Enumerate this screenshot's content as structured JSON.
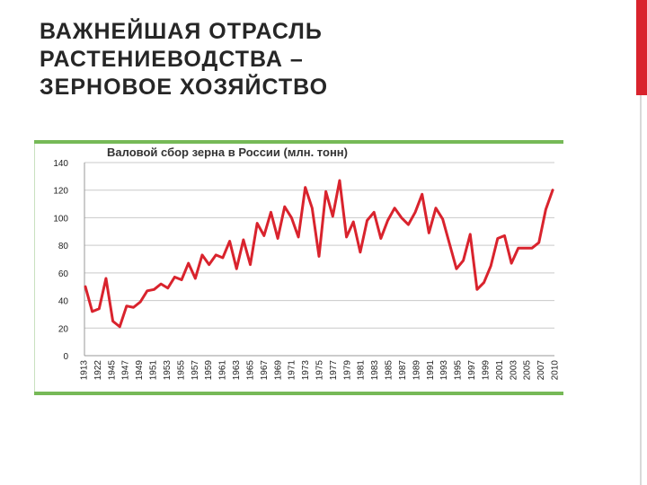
{
  "slide": {
    "title_lines": [
      "ВАЖНЕЙШАЯ ОТРАСЛЬ",
      "РАСТЕНИЕВОДСТВА –",
      "ЗЕРНОВОЕ ХОЗЯЙСТВО"
    ],
    "accent_color": "#d9232d",
    "chart_frame_color": "#76b957"
  },
  "chart_data": {
    "type": "line",
    "title": "Валовой сбор зерна в России (млн. тонн)",
    "xlabel": "",
    "ylabel": "",
    "ylim": [
      0,
      140
    ],
    "yticks": [
      0,
      20,
      40,
      60,
      80,
      100,
      120,
      140
    ],
    "grid": true,
    "legend": "none",
    "line_color": "#d9232d",
    "x_tick_labels": [
      "1913",
      "1922",
      "1945",
      "1947",
      "1949",
      "1951",
      "1953",
      "1955",
      "1957",
      "1959",
      "1961",
      "1963",
      "1965",
      "1967",
      "1969",
      "1971",
      "1973",
      "1975",
      "1977",
      "1979",
      "1981",
      "1983",
      "1985",
      "1987",
      "1989",
      "1991",
      "1993",
      "1995",
      "1997",
      "1999",
      "2001",
      "2003",
      "2005",
      "2007",
      "2010"
    ],
    "series": [
      {
        "values": [
          50,
          32,
          34,
          56,
          25,
          21,
          36,
          35,
          39,
          47,
          48,
          52,
          49,
          57,
          55,
          67,
          56,
          73,
          66,
          73,
          71,
          83,
          63,
          84,
          66,
          96,
          87,
          104,
          85,
          108,
          100,
          86,
          122,
          107,
          72,
          119,
          101,
          127,
          86,
          97,
          75,
          98,
          104,
          85,
          98,
          107,
          100,
          95,
          104,
          117,
          89,
          107,
          99,
          81,
          63,
          69,
          88,
          48,
          53,
          65,
          85,
          87,
          67,
          78,
          78,
          78,
          82,
          106,
          120
        ]
      }
    ]
  }
}
